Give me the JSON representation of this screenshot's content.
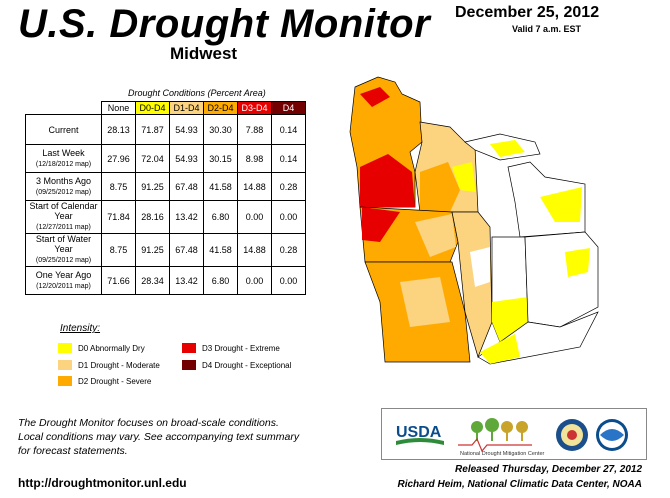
{
  "header": {
    "title": "U.S. Drought Monitor",
    "region": "Midwest",
    "date": "December 25, 2012",
    "valid": "Valid 7 a.m. EST"
  },
  "table": {
    "caption": "Drought Conditions (Percent Area)",
    "columns": [
      "None",
      "D0-D4",
      "D1-D4",
      "D2-D4",
      "D3-D4",
      "D4"
    ],
    "rows": [
      {
        "label": "Current",
        "sub": "",
        "values": [
          "28.13",
          "71.87",
          "54.93",
          "30.30",
          "7.88",
          "0.14"
        ]
      },
      {
        "label": "Last Week",
        "sub": "(12/18/2012 map)",
        "values": [
          "27.96",
          "72.04",
          "54.93",
          "30.15",
          "8.98",
          "0.14"
        ]
      },
      {
        "label": "3 Months Ago",
        "sub": "(09/25/2012 map)",
        "values": [
          "8.75",
          "91.25",
          "67.48",
          "41.58",
          "14.88",
          "0.28"
        ]
      },
      {
        "label": "Start of Calendar Year",
        "sub": "(12/27/2011 map)",
        "values": [
          "71.84",
          "28.16",
          "13.42",
          "6.80",
          "0.00",
          "0.00"
        ]
      },
      {
        "label": "Start of Water Year",
        "sub": "(09/25/2012 map)",
        "values": [
          "8.75",
          "91.25",
          "67.48",
          "41.58",
          "14.88",
          "0.28"
        ]
      },
      {
        "label": "One Year Ago",
        "sub": "(12/20/2011 map)",
        "values": [
          "71.66",
          "28.34",
          "13.42",
          "6.80",
          "0.00",
          "0.00"
        ]
      }
    ]
  },
  "legend": {
    "title": "Intensity:",
    "items": [
      {
        "label": "D0 Abnormally Dry",
        "color": "#ffff00"
      },
      {
        "label": "D1 Drought - Moderate",
        "color": "#fcd37f"
      },
      {
        "label": "D2 Drought - Severe",
        "color": "#ffaa00"
      },
      {
        "label": "D3 Drought - Extreme",
        "color": "#e60000"
      },
      {
        "label": "D4 Drought - Exceptional",
        "color": "#730000"
      }
    ]
  },
  "footer": {
    "note_line1": "The Drought Monitor focuses on broad-scale conditions.",
    "note_line2": "Local conditions may vary. See accompanying text summary",
    "note_line3": "for forecast statements.",
    "url": "http://droughtmonitor.unl.edu",
    "released": "Released Thursday, December 27, 2012",
    "author": "Richard Heim, National Climatic Data Center, NOAA"
  },
  "logos": {
    "usda": "USDA",
    "ndmc": "National Drought Mitigation Center"
  }
}
